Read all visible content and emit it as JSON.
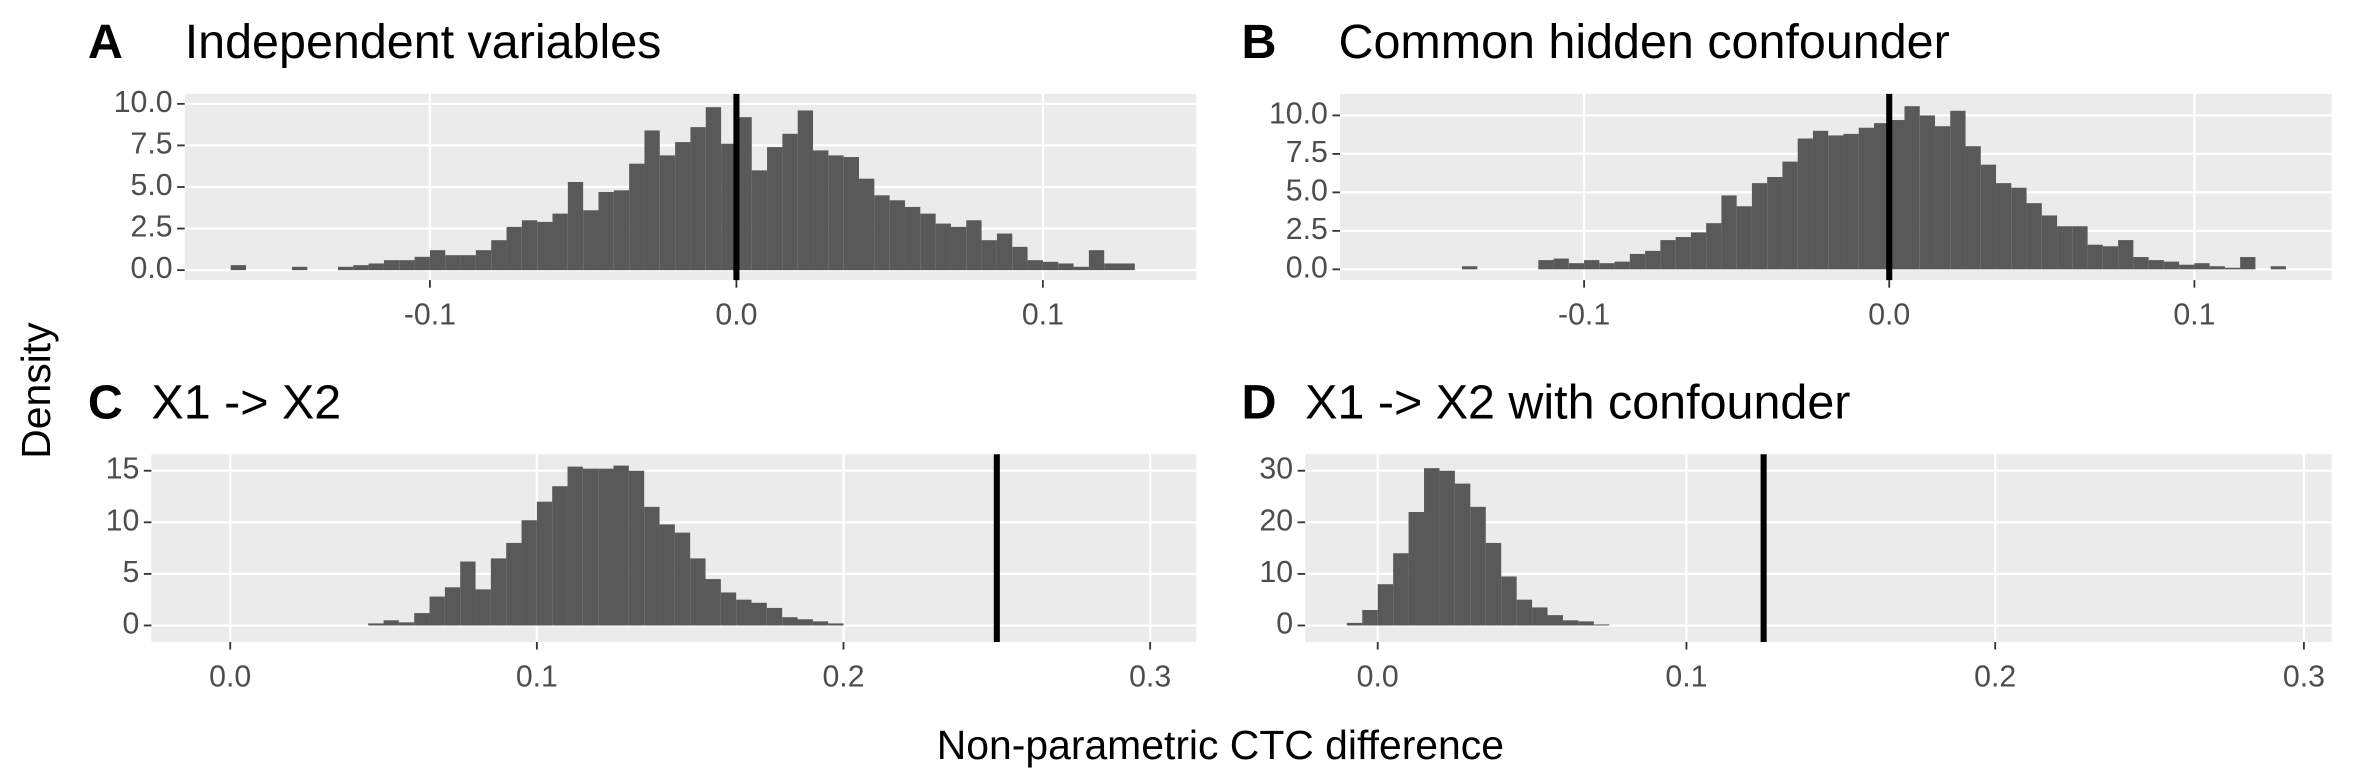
{
  "figure": {
    "ylabel": "Density",
    "xlabel": "Non-parametric CTC difference"
  },
  "chart_data": [
    {
      "type": "histogram",
      "label": "A",
      "title": "Independent variables",
      "color": "#595959",
      "vline": 0,
      "bins": [
        -0.165,
        -0.16,
        -0.155,
        -0.15,
        -0.145,
        -0.14,
        -0.135,
        -0.13,
        -0.125,
        -0.12,
        -0.115,
        -0.11,
        -0.105,
        -0.1,
        -0.095,
        -0.09,
        -0.085,
        -0.08,
        -0.075,
        -0.07,
        -0.065,
        -0.06,
        -0.055,
        -0.05,
        -0.045,
        -0.04,
        -0.035,
        -0.03,
        -0.025,
        -0.02,
        -0.015,
        -0.01,
        -0.005,
        0,
        0.005,
        0.01,
        0.015,
        0.02,
        0.025,
        0.03,
        0.035,
        0.04,
        0.045,
        0.05,
        0.055,
        0.06,
        0.065,
        0.07,
        0.075,
        0.08,
        0.085,
        0.09,
        0.095,
        0.1,
        0.105,
        0.11,
        0.115,
        0.12,
        0.125,
        0.13
      ],
      "values": [
        0.3,
        0,
        0,
        0,
        0.2,
        0,
        0,
        0.2,
        0.3,
        0.4,
        0.6,
        0.6,
        0.8,
        1.2,
        0.9,
        0.9,
        1.2,
        1.8,
        2.6,
        3.0,
        2.9,
        3.4,
        5.3,
        3.6,
        4.7,
        4.8,
        6.4,
        8.4,
        6.9,
        7.7,
        8.6,
        9.8,
        7.6,
        9.2,
        6.0,
        7.4,
        8.2,
        9.6,
        7.2,
        6.9,
        6.8,
        5.5,
        4.5,
        4.2,
        3.8,
        3.4,
        2.8,
        2.6,
        3.0,
        1.8,
        2.2,
        1.4,
        0.6,
        0.5,
        0.4,
        0.2,
        1.2,
        0.4,
        0.4
      ],
      "xlim": [
        -0.18,
        0.15
      ],
      "xticks": [
        -0.1,
        {
          "value": 0,
          "label": "0.0"
        },
        0.1
      ],
      "ylim": [
        -0.6,
        10.6
      ],
      "yticks": [
        {
          "value": 0,
          "label": "0.0"
        },
        2.5,
        {
          "value": 5,
          "label": "5.0"
        },
        7.5,
        {
          "value": 10,
          "label": "10.0"
        }
      ]
    },
    {
      "type": "histogram",
      "label": "B",
      "title": "Common hidden confounder",
      "color": "#595959",
      "vline": 0,
      "bins": [
        -0.14,
        -0.135,
        -0.13,
        -0.125,
        -0.12,
        -0.115,
        -0.11,
        -0.105,
        -0.1,
        -0.095,
        -0.09,
        -0.085,
        -0.08,
        -0.075,
        -0.07,
        -0.065,
        -0.06,
        -0.055,
        -0.05,
        -0.045,
        -0.04,
        -0.035,
        -0.03,
        -0.025,
        -0.02,
        -0.015,
        -0.01,
        -0.005,
        0,
        0.005,
        0.01,
        0.015,
        0.02,
        0.025,
        0.03,
        0.035,
        0.04,
        0.045,
        0.05,
        0.055,
        0.06,
        0.065,
        0.07,
        0.075,
        0.08,
        0.085,
        0.09,
        0.095,
        0.1,
        0.105,
        0.11,
        0.115,
        0.12,
        0.125,
        0.13
      ],
      "values": [
        0.2,
        0,
        0,
        0,
        0,
        0.6,
        0.7,
        0.4,
        0.6,
        0.4,
        0.5,
        1.0,
        1.2,
        1.9,
        2.1,
        2.4,
        3.0,
        4.8,
        4.1,
        5.6,
        6.0,
        7.0,
        8.5,
        9.0,
        8.7,
        8.8,
        9.2,
        9.5,
        9.7,
        10.6,
        10.0,
        9.3,
        10.3,
        8.0,
        6.8,
        5.6,
        5.3,
        4.3,
        3.5,
        2.8,
        2.8,
        1.6,
        1.5,
        1.9,
        0.8,
        0.6,
        0.5,
        0.3,
        0.4,
        0.2,
        0.1,
        0.8,
        0,
        0.2
      ],
      "xlim": [
        -0.18,
        0.145
      ],
      "xticks": [
        -0.1,
        {
          "value": 0,
          "label": "0.0"
        },
        0.1
      ],
      "ylim": [
        -0.7,
        11.4
      ],
      "yticks": [
        {
          "value": 0,
          "label": "0.0"
        },
        2.5,
        {
          "value": 5,
          "label": "5.0"
        },
        7.5,
        {
          "value": 10,
          "label": "10.0"
        }
      ]
    },
    {
      "type": "histogram",
      "label": "C",
      "title": "X1 -> X2",
      "color": "#595959",
      "vline": 0.25,
      "bins": [
        0.045,
        0.05,
        0.055,
        0.06,
        0.065,
        0.07,
        0.075,
        0.08,
        0.085,
        0.09,
        0.095,
        0.1,
        0.105,
        0.11,
        0.115,
        0.12,
        0.125,
        0.13,
        0.135,
        0.14,
        0.145,
        0.15,
        0.155,
        0.16,
        0.165,
        0.17,
        0.175,
        0.18,
        0.185,
        0.19,
        0.195,
        0.2
      ],
      "values": [
        0.2,
        0.5,
        0.3,
        1.2,
        2.8,
        3.7,
        6.2,
        3.5,
        6.5,
        8.0,
        10.2,
        12.0,
        13.5,
        15.4,
        15.2,
        15.2,
        15.5,
        15.0,
        11.5,
        9.8,
        9.0,
        6.5,
        4.5,
        3.2,
        2.5,
        2.2,
        1.7,
        0.8,
        0.6,
        0.4,
        0.2
      ],
      "xlim": [
        -0.0257,
        0.315
      ],
      "xticks": [
        {
          "value": 0,
          "label": "0.0"
        },
        0.1,
        0.2,
        0.3
      ],
      "ylim": [
        -1.6,
        16.6
      ],
      "yticks": [
        0,
        5,
        10,
        15
      ]
    },
    {
      "type": "histogram",
      "label": "D",
      "title": "X1 -> X2 with confounder",
      "color": "#595959",
      "vline": 0.125,
      "bins": [
        -0.01,
        -0.005,
        0,
        0.005,
        0.01,
        0.015,
        0.02,
        0.025,
        0.03,
        0.035,
        0.04,
        0.045,
        0.05,
        0.055,
        0.06,
        0.065,
        0.07,
        0.075
      ],
      "values": [
        0.5,
        3,
        8,
        14,
        22,
        30.5,
        30,
        27.5,
        23,
        16,
        9.5,
        5,
        3.5,
        2,
        1,
        0.8,
        0.2
      ],
      "xlim": [
        -0.0235,
        0.309
      ],
      "xticks": [
        {
          "value": 0,
          "label": "0.0"
        },
        0.1,
        0.2,
        0.3
      ],
      "ylim": [
        -3.2,
        33.2
      ],
      "yticks": [
        0,
        10,
        20,
        30
      ]
    }
  ]
}
